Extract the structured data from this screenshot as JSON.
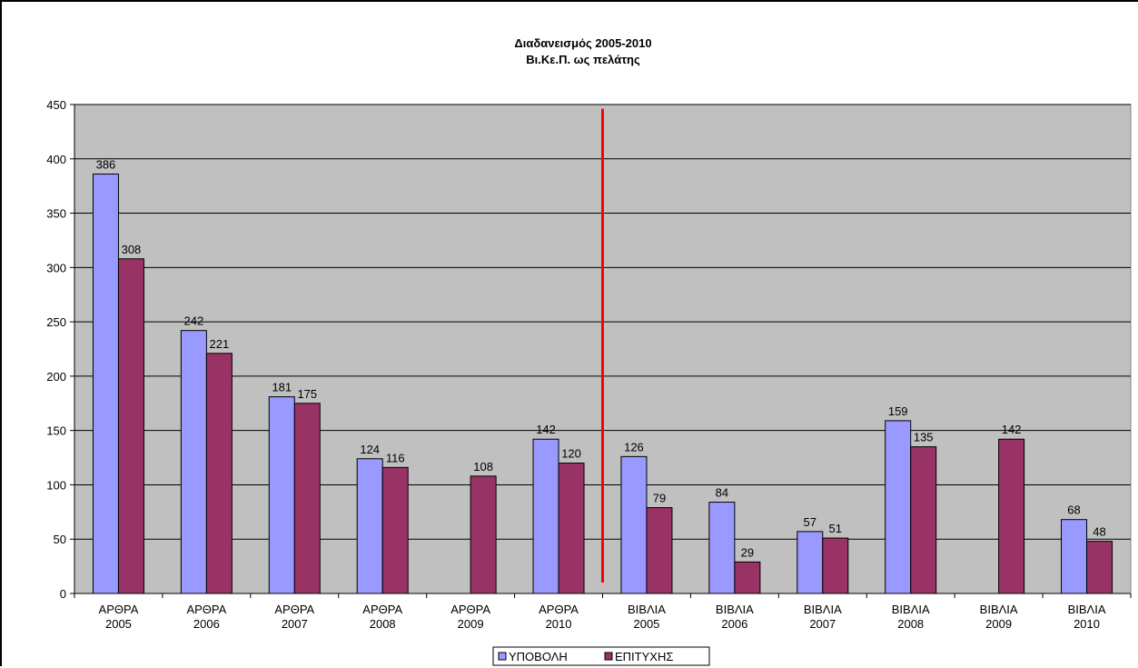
{
  "chart_data": {
    "type": "bar",
    "title_lines": [
      "Διαδανεισμός 2005-2010",
      "Βι.Κε.Π. ως πελάτης"
    ],
    "categories": [
      [
        "ΑΡΘΡΑ",
        "2005"
      ],
      [
        "ΑΡΘΡΑ",
        "2006"
      ],
      [
        "ΑΡΘΡΑ",
        "2007"
      ],
      [
        "ΑΡΘΡΑ",
        "2008"
      ],
      [
        "ΑΡΘΡΑ",
        "2009"
      ],
      [
        "ΑΡΘΡΑ",
        "2010"
      ],
      [
        "ΒΙΒΛΙΑ",
        "2005"
      ],
      [
        "ΒΙΒΛΙΑ",
        "2006"
      ],
      [
        "ΒΙΒΛΙΑ",
        "2007"
      ],
      [
        "ΒΙΒΛΙΑ",
        "2008"
      ],
      [
        "ΒΙΒΛΙΑ",
        "2009"
      ],
      [
        "ΒΙΒΛΙΑ",
        "2010"
      ]
    ],
    "series": [
      {
        "name": "ΥΠΟΒΟΛΗ",
        "color": "#9999FF",
        "values": [
          386,
          242,
          181,
          124,
          null,
          142,
          126,
          84,
          57,
          159,
          null,
          68
        ]
      },
      {
        "name": "ΕΠΙΤΥΧΗΣ",
        "color": "#993366",
        "values": [
          308,
          221,
          175,
          116,
          108,
          120,
          79,
          29,
          51,
          135,
          142,
          48
        ]
      }
    ],
    "ylim": [
      0,
      450
    ],
    "yticks": [
      0,
      50,
      100,
      150,
      200,
      250,
      300,
      350,
      400,
      450
    ],
    "grid": true,
    "plot_background": "#C0C0C0",
    "divider": {
      "between": [
        "ΑΡΘΡΑ 2010",
        "ΒΙΒΛΙΑ 2005"
      ],
      "color": "#FF0000"
    },
    "legend_position": "bottom-center"
  }
}
